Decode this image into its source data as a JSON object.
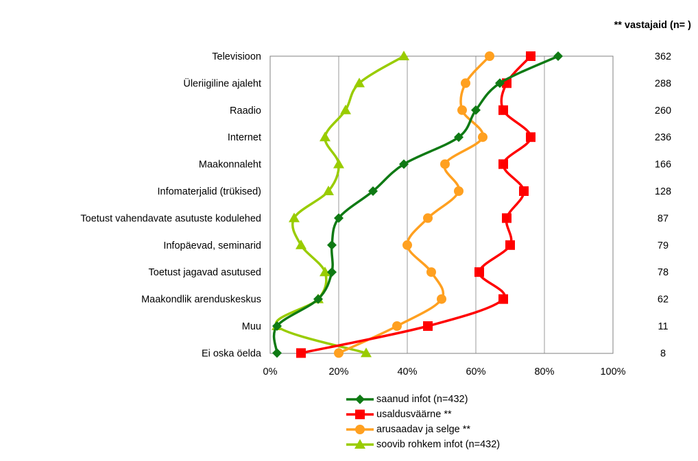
{
  "chart_data": {
    "type": "line",
    "categories": [
      "Televisioon",
      "Üleriigiline ajaleht",
      "Raadio",
      "Internet",
      "Maakonnaleht",
      "Infomaterjalid (trükised)",
      "Toetust vahendavate asutuste kodulehed",
      "Infopäevad, seminarid",
      "Toetust jagavad asutused",
      "Maakondlik arenduskeskus",
      "Muu",
      "Ei oska öelda"
    ],
    "respondents_header": "** vastajaid (n= )",
    "respondents": [
      "362",
      "288",
      "260",
      "236",
      "166",
      "128",
      "87",
      "79",
      "78",
      "62",
      "11",
      "8"
    ],
    "x_ticks": [
      "0%",
      "20%",
      "40%",
      "60%",
      "80%",
      "100%"
    ],
    "xlim": [
      0,
      100
    ],
    "grid": true,
    "legend_position": "bottom",
    "series": [
      {
        "name": "saanud infot (n=432)",
        "color": "#0f7a14",
        "marker": "diamond",
        "values": [
          84,
          67,
          60,
          55,
          39,
          30,
          20,
          18,
          18,
          14,
          2,
          2
        ]
      },
      {
        "name": "usaldusväärne **",
        "color": "#ff0000",
        "marker": "square",
        "values": [
          76,
          69,
          68,
          76,
          68,
          74,
          69,
          70,
          61,
          68,
          46,
          9
        ]
      },
      {
        "name": "arusaadav ja selge **",
        "color": "#ffa020",
        "marker": "circle",
        "values": [
          64,
          57,
          56,
          62,
          51,
          55,
          46,
          40,
          47,
          50,
          37,
          20
        ]
      },
      {
        "name": "soovib rohkem infot (n=432)",
        "color": "#99cc00",
        "marker": "triangle",
        "values": [
          39,
          26,
          22,
          16,
          20,
          17,
          7,
          9,
          16,
          14,
          2,
          28
        ]
      }
    ]
  }
}
